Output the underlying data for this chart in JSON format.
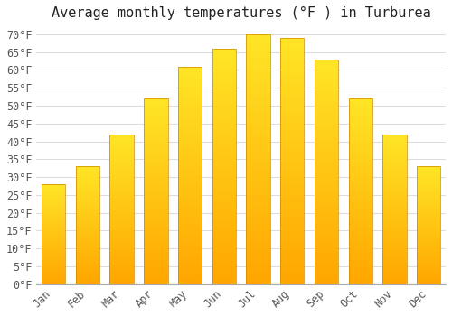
{
  "title": "Average monthly temperatures (°F ) in Turburea",
  "months": [
    "Jan",
    "Feb",
    "Mar",
    "Apr",
    "May",
    "Jun",
    "Jul",
    "Aug",
    "Sep",
    "Oct",
    "Nov",
    "Dec"
  ],
  "values": [
    28,
    33,
    42,
    52,
    61,
    66,
    70,
    69,
    63,
    52,
    42,
    33
  ],
  "bar_color_bottom": "#FFA500",
  "bar_color_top": "#FFD700",
  "bar_edge_color": "#CC8800",
  "background_color": "#FFFFFF",
  "plot_bg_color": "#FFFFFF",
  "grid_color": "#DDDDDD",
  "ylim": [
    0,
    72
  ],
  "yticks": [
    0,
    5,
    10,
    15,
    20,
    25,
    30,
    35,
    40,
    45,
    50,
    55,
    60,
    65,
    70
  ],
  "title_fontsize": 11,
  "tick_fontsize": 8.5,
  "font_family": "monospace",
  "bar_width": 0.7
}
